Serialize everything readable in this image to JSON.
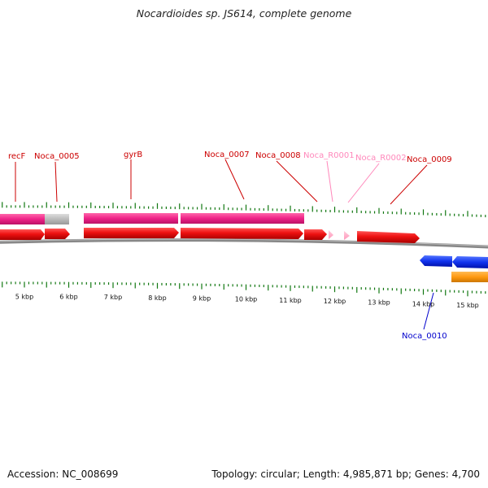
{
  "title": "Nocardioides sp. JS614, complete genome",
  "footer": {
    "accession": "Accession: NC_008699",
    "stats": "Topology: circular; Length: 4,985,871 bp; Genes: 4,700"
  },
  "colors": {
    "cds_forward": "#ee1111",
    "cds_reverse": "#1133ee",
    "gene_pink": "#ee2288",
    "gene_gray": "#bbbbbb",
    "rna_pink": "#ffaacc",
    "orange": "#ff9911",
    "tick_green": "#117711",
    "backbone": "#888888"
  },
  "kbp_labels": [
    {
      "kb": 5,
      "text": "5 kbp"
    },
    {
      "kb": 6,
      "text": "6 kbp"
    },
    {
      "kb": 7,
      "text": "7 kbp"
    },
    {
      "kb": 8,
      "text": "8 kbp"
    },
    {
      "kb": 9,
      "text": "9 kbp"
    },
    {
      "kb": 10,
      "text": "10 kbp"
    },
    {
      "kb": 11,
      "text": "11 kbp"
    },
    {
      "kb": 12,
      "text": "12 kbp"
    },
    {
      "kb": 13,
      "text": "13 kbp"
    },
    {
      "kb": 14,
      "text": "14 kbp"
    },
    {
      "kb": 15,
      "text": "15 kbp"
    }
  ],
  "gene_labels": [
    {
      "name": "recF",
      "color": "#cc0000"
    },
    {
      "name": "Noca_0005",
      "color": "#cc0000"
    },
    {
      "name": "gyrB",
      "color": "#cc0000"
    },
    {
      "name": "Noca_0007",
      "color": "#cc0000"
    },
    {
      "name": "Noca_0008",
      "color": "#cc0000"
    },
    {
      "name": "Noca_R0001",
      "color": "#ff88bb"
    },
    {
      "name": "Noca_R0002",
      "color": "#ff88bb"
    },
    {
      "name": "Noca_0009",
      "color": "#cc0000"
    },
    {
      "name": "Noca_0010",
      "color": "#0000cc"
    }
  ]
}
